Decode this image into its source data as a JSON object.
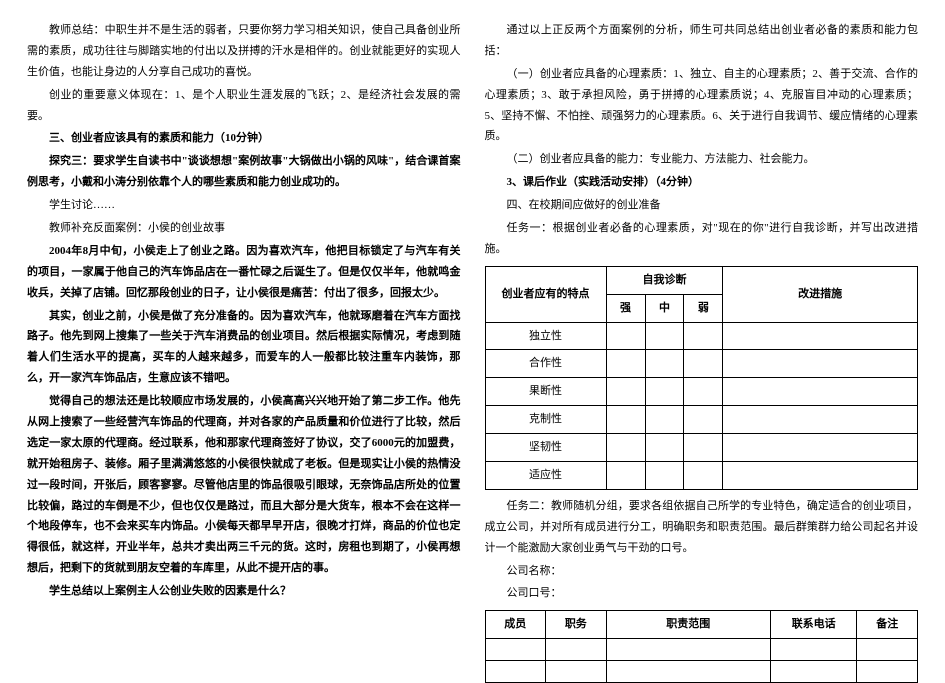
{
  "left": {
    "p1": "教师总结：中职生并不是生活的弱者，只要你努力学习相关知识，使自己具备创业所需的素质，成功往往与脚踏实地的付出以及拼搏的汗水是相伴的。创业就能更好的实现人生价值，也能让身边的人分享自己成功的喜悦。",
    "p2": "创业的重要意义体现在：1、是个人职业生涯发展的飞跃；2、是经济社会发展的需要。",
    "h3": "三、创业者应该具有的素质和能力（10分钟）",
    "p3": "探究三：要求学生自读书中\"谈谈想想\"案例故事\"大锅做出小锅的风味\"，结合课首案例思考，小戴和小涛分别依靠个人的哪些素质和能力创业成功的。",
    "p4": "学生讨论……",
    "p5": "教师补充反面案例：小侯的创业故事",
    "p6": "2004年8月中旬，小侯走上了创业之路。因为喜欢汽车，他把目标锁定了与汽车有关的项目，一家属于他自己的汽车饰品店在一番忙碌之后诞生了。但是仅仅半年，他就鸣金收兵，关掉了店铺。回忆那段创业的日子，让小侯很是痛苦：付出了很多，回报太少。",
    "p7": "其实，创业之前，小侯是做了充分准备的。因为喜欢汽车，他就琢磨着在汽车方面找路子。他先到网上搜集了一些关于汽车消费品的创业项目。然后根据实际情况，考虑到随着人们生活水平的提高，买车的人越来越多，而爱车的人一般都比较注重车内装饰，那么，开一家汽车饰品店，生意应该不错吧。",
    "p8": "觉得自己的想法还是比较顺应市场发展的，小侯高高兴兴地开始了第二步工作。他先从网上搜索了一些经营汽车饰品的代理商，并对各家的产品质量和价位进行了比较，然后选定一家太原的代理商。经过联系，他和那家代理商签好了协议，交了6000元的加盟费，就开始租房子、装修。厢子里满满悠悠的小侯很快就成了老板。但是现实让小侯的热情没过一段时间，开张后，顾客寥寥。尽管他店里的饰品很吸引眼球，无奈饰品店所处的位置比较偏，路过的车倒是不少，但也仅仅是路过，而且大部分是大货车，根本不会在这样一个地段停车，也不会来买车内饰品。小侯每天都早早开店，很晚才打烊，商品的价位也定得很低，就这样，开业半年，总共才卖出两三千元的货。这时，房租也到期了，小侯再想想后，把剩下的货就到朋友空着的车库里，从此不提开店的事。",
    "p9": "学生总结以上案例主人公创业失败的因素是什么？"
  },
  "right": {
    "p1": "通过以上正反两个方面案例的分析，师生可共同总结出创业者必备的素质和能力包括：",
    "p2": "（一）创业者应具备的心理素质：1、独立、自主的心理素质；2、善于交流、合作的心理素质；3、敢于承担风险，勇于拼搏的心理素质说；4、克服盲目冲动的心理素质；5、坚持不懈、不怕挫、顽强努力的心理素质。6、关于进行自我调节、缓应情绪的心理素质。",
    "p3": "（二）创业者应具备的能力：专业能力、方法能力、社会能力。",
    "h3": "3、课后作业（实践活动安排）（4分钟）",
    "p4": "四、在校期间应做好的创业准备",
    "p5": "任务一：根据创业者必备的心理素质，对\"现在的你\"进行自我诊断，并写出改进措施。",
    "table1": {
      "header_col1": "创业者应有的特点",
      "header_diag": "自我诊断",
      "header_strong": "强",
      "header_mid": "中",
      "header_weak": "弱",
      "header_action": "改进措施",
      "rows": [
        "独立性",
        "合作性",
        "果断性",
        "克制性",
        "坚韧性",
        "适应性"
      ]
    },
    "p6": "任务二：教师随机分组，要求各组依据自己所学的专业特色，确定适合的创业项目，成立公司，并对所有成员进行分工，明确职务和职责范围。最后群策群力给公司起名并设计一个能激励大家创业勇气与干劲的口号。",
    "p7": "公司名称：",
    "p8": "公司口号：",
    "table2": {
      "headers": [
        "成员",
        "职务",
        "职责范围",
        "联系电话",
        "备注"
      ]
    }
  }
}
